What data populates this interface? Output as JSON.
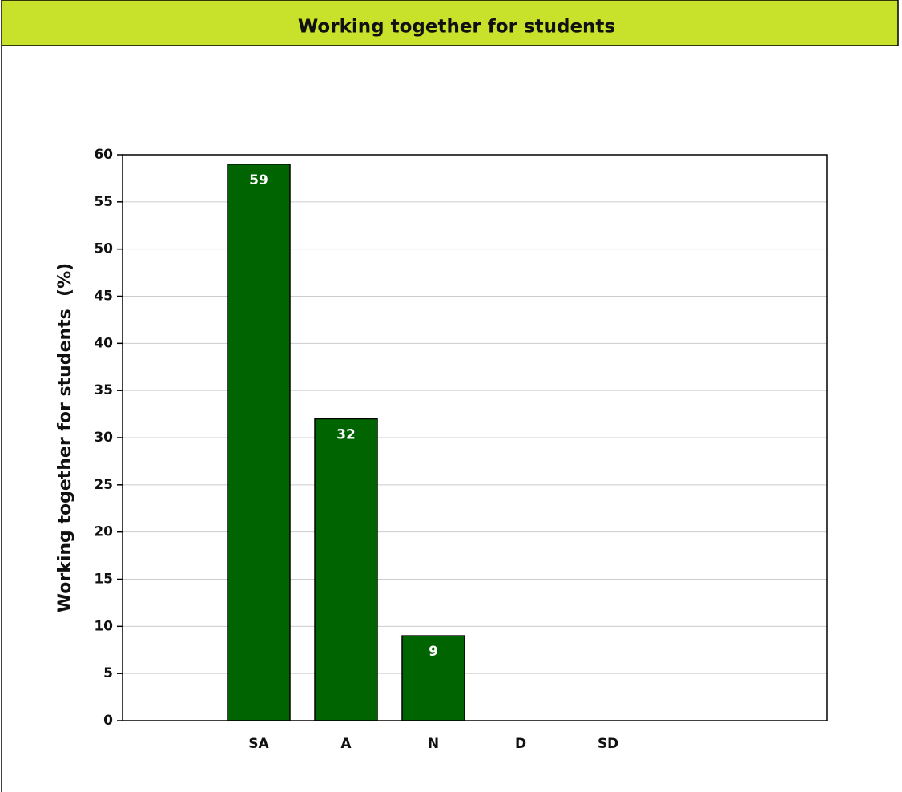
{
  "chart_data": {
    "type": "bar",
    "title": "Working together for students",
    "y_label": "Working together for students  (%)",
    "categories": [
      "SA",
      "A",
      "N",
      "D",
      "SD"
    ],
    "values": [
      59,
      32,
      9,
      0,
      0
    ],
    "color": "#006400",
    "ylim": [
      0,
      60
    ],
    "yticks": [
      0,
      5,
      10,
      15,
      20,
      25,
      30,
      35,
      40,
      45,
      50,
      55,
      60
    ],
    "grid": true
  }
}
